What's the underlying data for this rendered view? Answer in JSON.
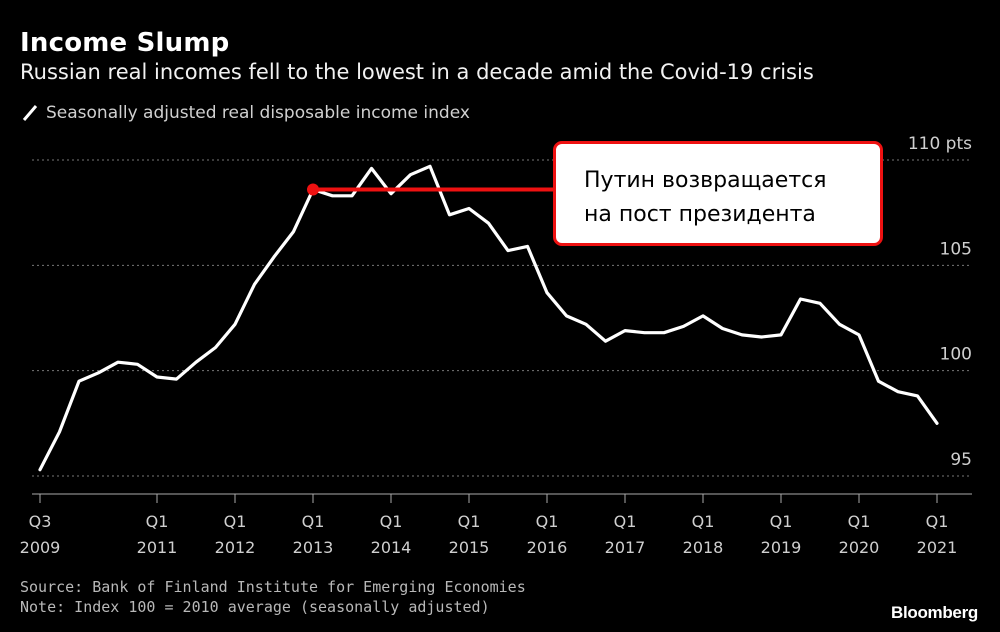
{
  "title": "Income Slump",
  "subtitle": "Russian real incomes fell to the lowest in a decade amid the Covid-19 crisis",
  "legend_label": "Seasonally adjusted real disposable income index",
  "source": "Source: Bank of Finland Institute for Emerging Economies",
  "note": "Note: Index 100 = 2010 average (seasonally adjusted)",
  "brand": "Bloomberg",
  "annotation": "Путин возвращается\nна пост президента",
  "colors": {
    "background": "#000000",
    "line": "#ffffff",
    "annotation": "#ee1111",
    "grid": "#777777"
  },
  "chart_data": {
    "type": "line",
    "ylim": [
      95,
      110
    ],
    "y_ticks": [
      {
        "value": 110,
        "label": "110 pts"
      },
      {
        "value": 105,
        "label": "105"
      },
      {
        "value": 100,
        "label": "100"
      },
      {
        "value": 95,
        "label": "95"
      }
    ],
    "x_ticks": [
      {
        "q": 0,
        "top": "Q3",
        "bottom": "2009"
      },
      {
        "q": 6,
        "top": "Q1",
        "bottom": "2011"
      },
      {
        "q": 10,
        "top": "Q1",
        "bottom": "2012"
      },
      {
        "q": 14,
        "top": "Q1",
        "bottom": "2013"
      },
      {
        "q": 18,
        "top": "Q1",
        "bottom": "2014"
      },
      {
        "q": 22,
        "top": "Q1",
        "bottom": "2015"
      },
      {
        "q": 26,
        "top": "Q1",
        "bottom": "2016"
      },
      {
        "q": 30,
        "top": "Q1",
        "bottom": "2017"
      },
      {
        "q": 34,
        "top": "Q1",
        "bottom": "2018"
      },
      {
        "q": 38,
        "top": "Q1",
        "bottom": "2019"
      },
      {
        "q": 42,
        "top": "Q1",
        "bottom": "2020"
      },
      {
        "q": 46,
        "top": "Q1",
        "bottom": "2021"
      }
    ],
    "series": [
      {
        "x": [
          "2009 Q3",
          "2009 Q4",
          "2010 Q1",
          "2010 Q2",
          "2010 Q3",
          "2010 Q4",
          "2011 Q1",
          "2011 Q2",
          "2011 Q3",
          "2011 Q4",
          "2012 Q1",
          "2012 Q2",
          "2012 Q3",
          "2012 Q4",
          "2013 Q1",
          "2013 Q2",
          "2013 Q3",
          "2013 Q4",
          "2014 Q1",
          "2014 Q2",
          "2014 Q3",
          "2014 Q4",
          "2015 Q1",
          "2015 Q2",
          "2015 Q3",
          "2015 Q4",
          "2016 Q1",
          "2016 Q2",
          "2016 Q3",
          "2016 Q4",
          "2017 Q1",
          "2017 Q2",
          "2017 Q3",
          "2017 Q4",
          "2018 Q1",
          "2018 Q2",
          "2018 Q3",
          "2018 Q4",
          "2019 Q1",
          "2019 Q2",
          "2019 Q3",
          "2019 Q4",
          "2020 Q1",
          "2020 Q2",
          "2020 Q3",
          "2020 Q4",
          "2021 Q1"
        ],
        "values": [
          95.3,
          97.1,
          99.5,
          99.9,
          100.4,
          100.3,
          99.7,
          99.6,
          100.4,
          101.1,
          102.2,
          104.1,
          105.4,
          106.6,
          108.6,
          108.3,
          108.3,
          109.6,
          108.4,
          109.3,
          109.7,
          107.4,
          107.7,
          107.0,
          105.7,
          105.9,
          103.7,
          102.6,
          102.2,
          101.4,
          101.9,
          101.8,
          101.8,
          102.1,
          102.6,
          102.0,
          101.7,
          101.6,
          101.7,
          103.4,
          103.2,
          102.2,
          101.7,
          99.5,
          99.0,
          98.8,
          97.5
        ]
      }
    ],
    "annotation_point": {
      "x": "2013 Q1",
      "value": 108.6
    }
  }
}
